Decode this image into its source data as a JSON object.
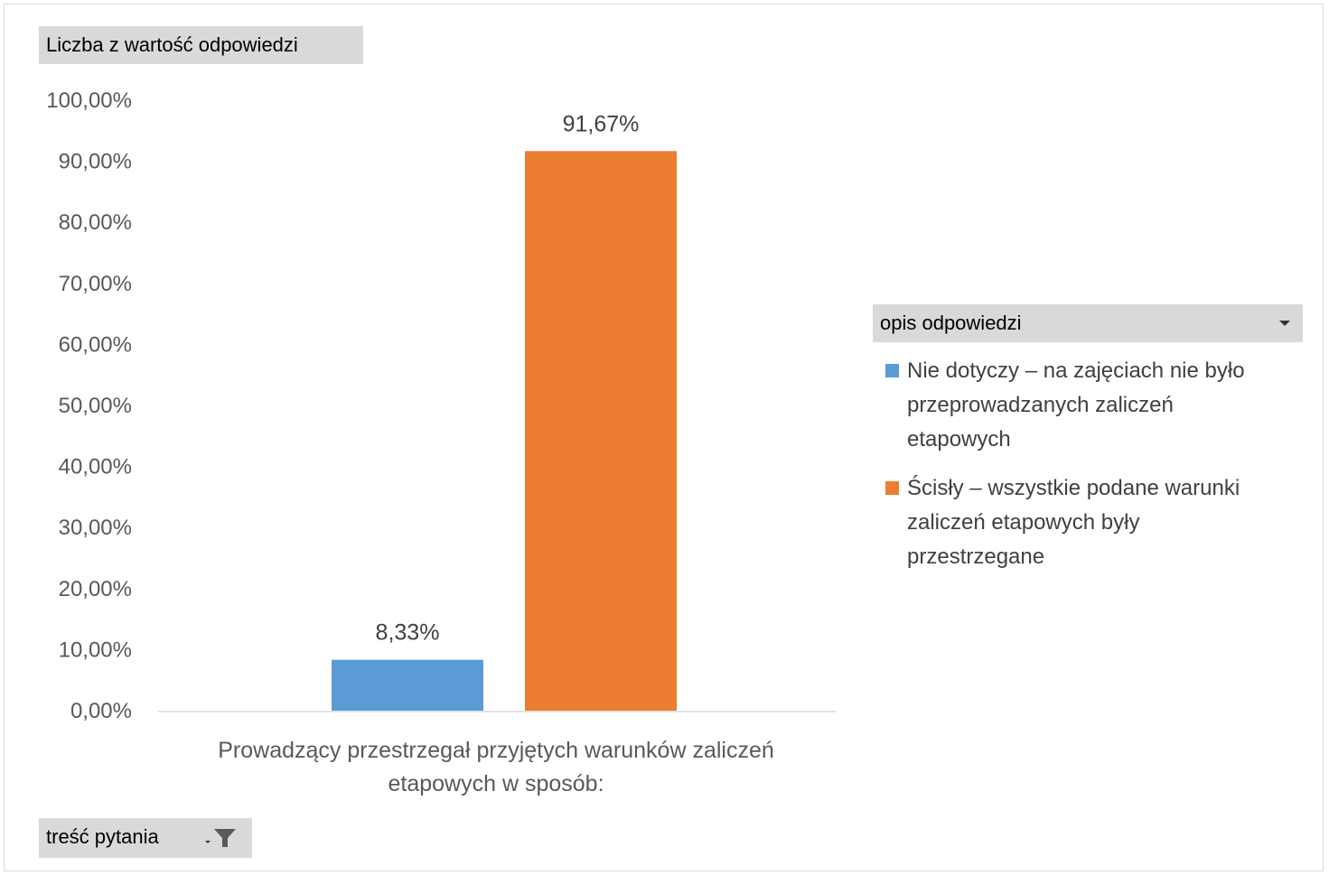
{
  "field_buttons": {
    "values": "Liczba z wartość odpowiedzi",
    "legend": "opis odpowiedzi",
    "axis": "treść pytania"
  },
  "chart_data": {
    "type": "bar",
    "categories": [
      "Prowadzący przestrzegał przyjętych warunków zaliczeń etapowych w sposób:"
    ],
    "category_label_lines": [
      "Prowadzący przestrzegał przyjętych warunków zaliczeń",
      "etapowych w sposób:"
    ],
    "series": [
      {
        "name": "Nie dotyczy – na zajęciach nie było przeprowadzanych zaliczeń etapowych",
        "values": [
          8.33
        ],
        "data_labels": [
          "8,33%"
        ],
        "color": "#5b9bd5"
      },
      {
        "name": "Ścisły – wszystkie podane warunki zaliczeń etapowych były przestrzegane",
        "values": [
          91.67
        ],
        "data_labels": [
          "91,67%"
        ],
        "color": "#ed7d31"
      }
    ],
    "y_ticks": [
      "0,00%",
      "10,00%",
      "20,00%",
      "30,00%",
      "40,00%",
      "50,00%",
      "60,00%",
      "70,00%",
      "80,00%",
      "90,00%",
      "100,00%"
    ],
    "ylim": [
      0,
      100
    ],
    "grid": false,
    "legend_position": "right"
  },
  "legend": {
    "items": [
      {
        "lines": [
          "Nie dotyczy – na zajęciach nie było",
          "przeprowadzanych zaliczeń",
          "etapowych"
        ]
      },
      {
        "lines": [
          "Ścisły – wszystkie podane warunki",
          "zaliczeń etapowych były",
          "przestrzegane"
        ]
      }
    ]
  }
}
